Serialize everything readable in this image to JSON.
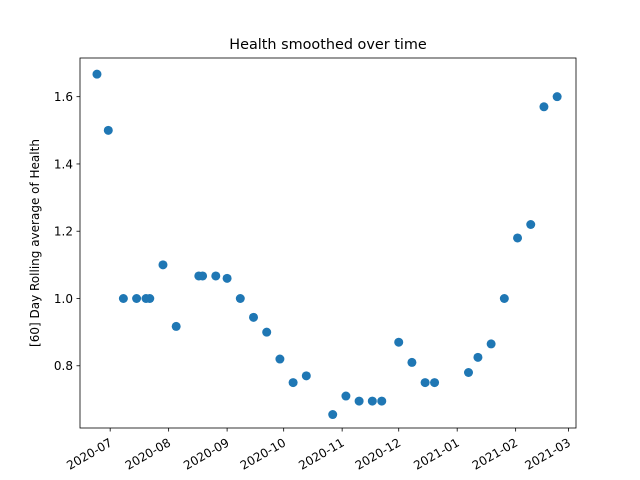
{
  "chart_data": {
    "type": "scatter",
    "title": "Health smoothed over time",
    "xlabel": "",
    "ylabel": "[60] Day Rolling average of Health",
    "x_type": "date",
    "xlim": [
      "2020-06-15",
      "2021-03-05"
    ],
    "ylim": [
      0.615,
      1.715
    ],
    "x_ticks": [
      "2020-07-01",
      "2020-08-01",
      "2020-09-01",
      "2020-10-01",
      "2020-11-01",
      "2020-12-01",
      "2021-01-01",
      "2021-02-01",
      "2021-03-01"
    ],
    "x_tick_labels": [
      "2020-07",
      "2020-08",
      "2020-09",
      "2020-10",
      "2020-11",
      "2020-12",
      "2021-01",
      "2021-02",
      "2021-03"
    ],
    "y_ticks": [
      0.8,
      1.0,
      1.2,
      1.4,
      1.6
    ],
    "y_tick_labels": [
      "0.8",
      "1.0",
      "1.2",
      "1.4",
      "1.6"
    ],
    "grid": false,
    "legend": "none",
    "marker_color": "#1f77b4",
    "x": [
      "2020-06-24",
      "2020-06-30",
      "2020-07-08",
      "2020-07-15",
      "2020-07-20",
      "2020-07-22",
      "2020-07-29",
      "2020-08-05",
      "2020-08-17",
      "2020-08-19",
      "2020-08-26",
      "2020-09-01",
      "2020-09-08",
      "2020-09-15",
      "2020-09-22",
      "2020-09-29",
      "2020-10-06",
      "2020-10-13",
      "2020-10-27",
      "2020-11-03",
      "2020-11-10",
      "2020-11-17",
      "2020-11-22",
      "2020-12-01",
      "2020-12-08",
      "2020-12-15",
      "2020-12-20",
      "2021-01-07",
      "2021-01-12",
      "2021-01-19",
      "2021-01-26",
      "2021-02-02",
      "2021-02-09",
      "2021-02-16",
      "2021-02-23"
    ],
    "y": [
      1.667,
      1.5,
      1.0,
      1.0,
      1.0,
      1.0,
      1.1,
      0.917,
      1.067,
      1.067,
      1.067,
      1.06,
      1.0,
      0.944,
      0.9,
      0.82,
      0.75,
      0.77,
      0.655,
      0.71,
      0.695,
      0.695,
      0.695,
      0.87,
      0.81,
      0.75,
      0.75,
      0.78,
      0.825,
      0.865,
      1.0,
      1.18,
      1.22,
      1.57,
      1.6
    ]
  }
}
